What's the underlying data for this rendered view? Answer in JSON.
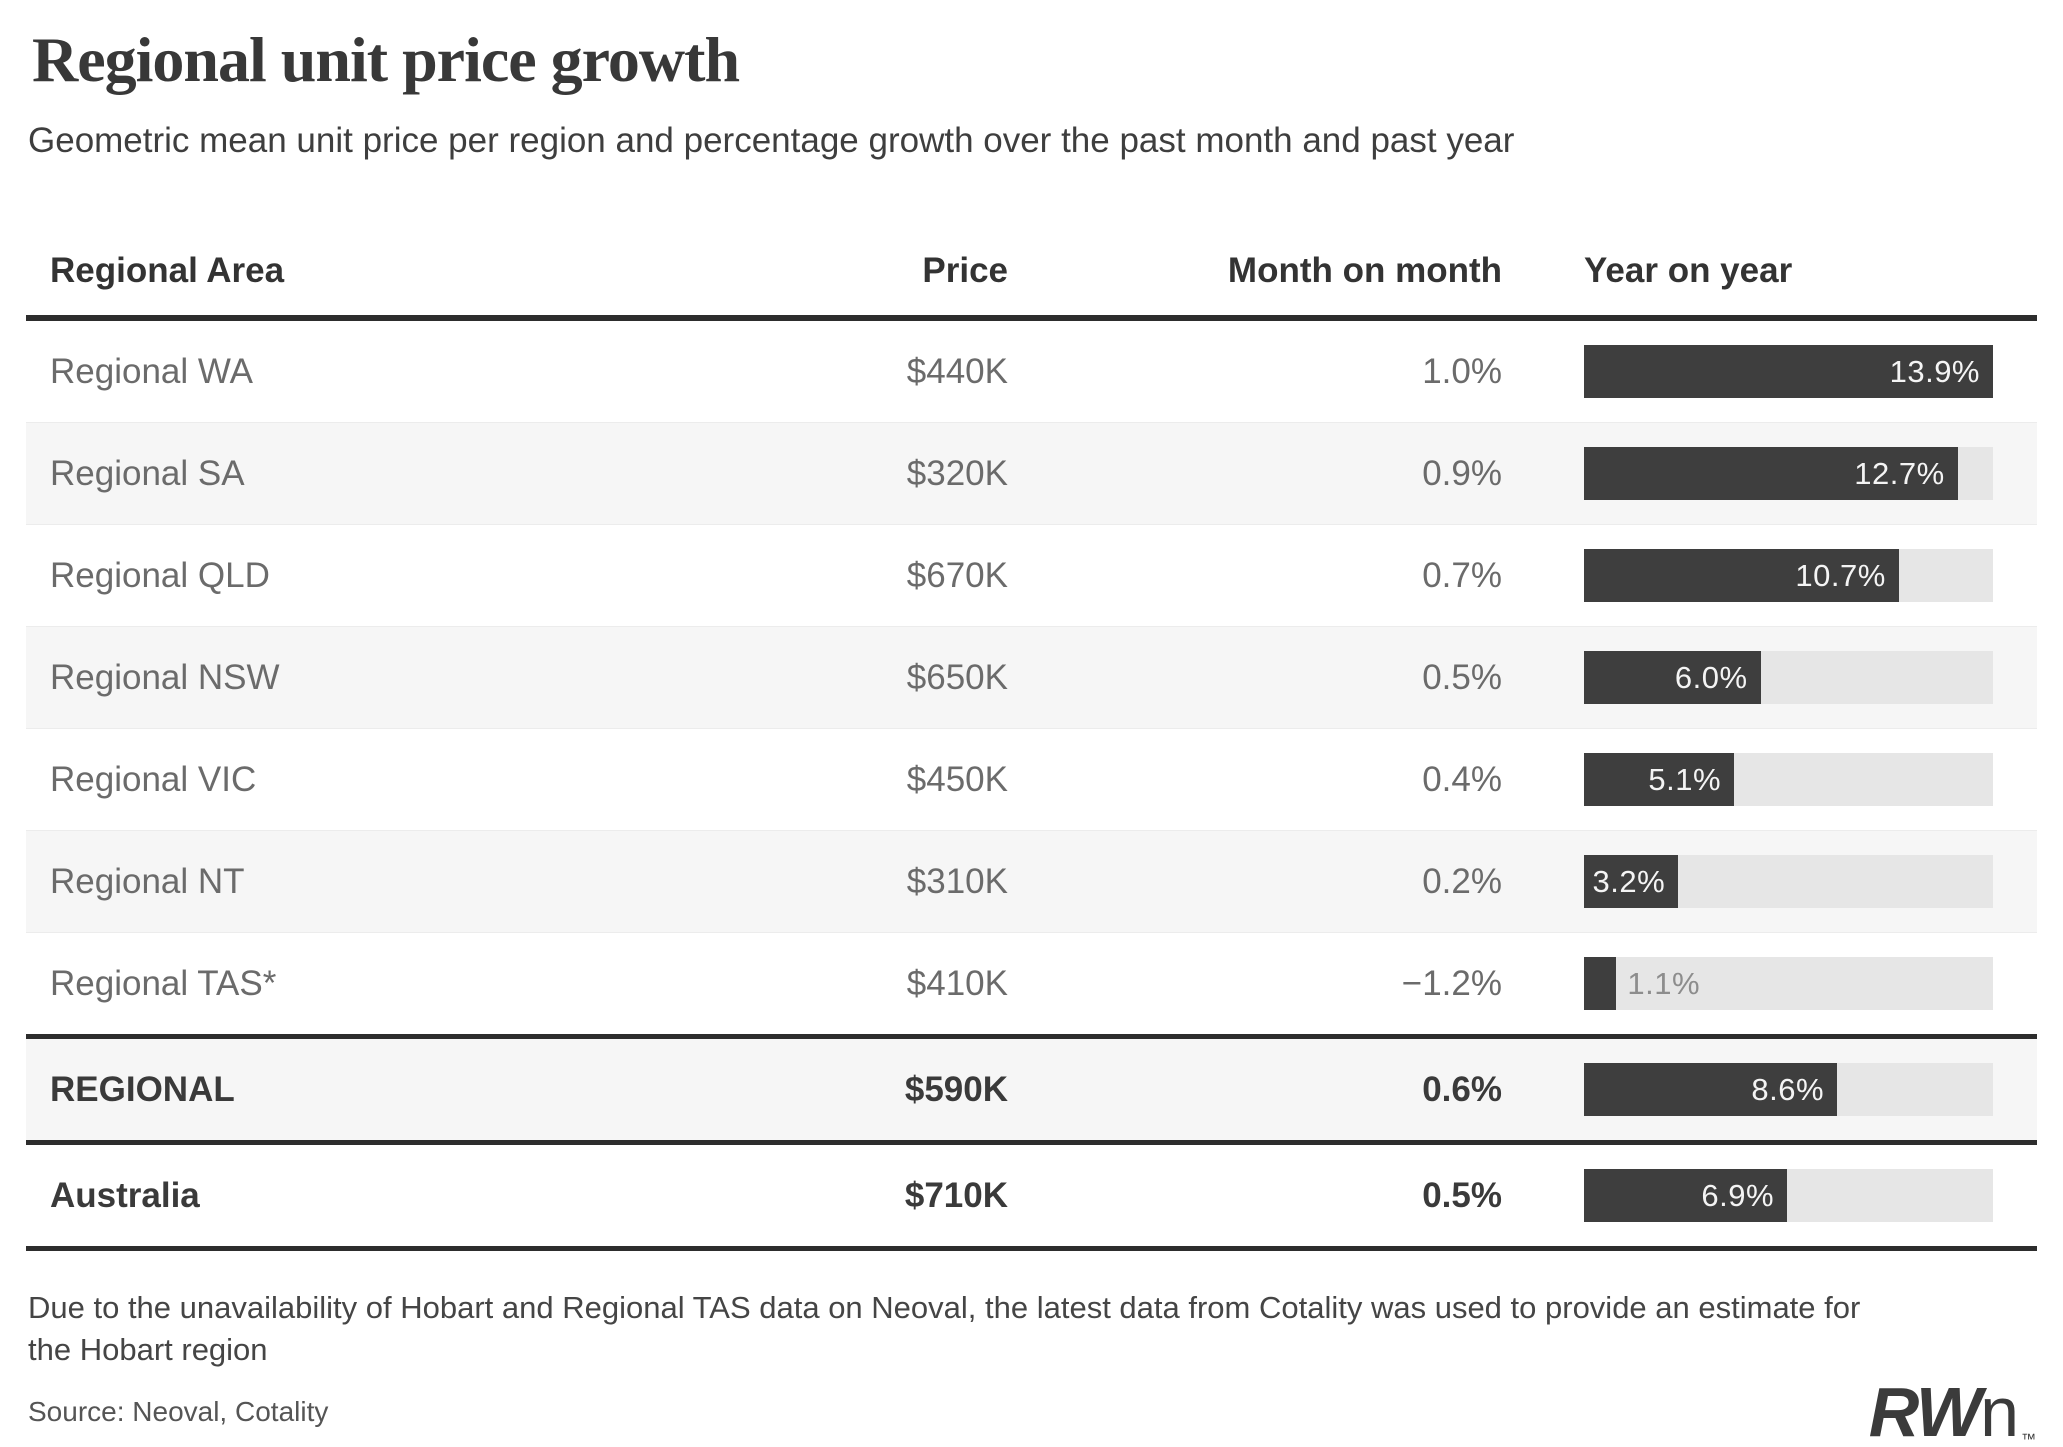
{
  "header": {
    "title": "Regional unit price growth",
    "subtitle": "Geometric mean unit price per region and percentage growth over the past month and past year"
  },
  "table": {
    "columns": [
      "Regional Area",
      "Price",
      "Month on month",
      "Year on year"
    ],
    "yoy_axis_max": 13.9,
    "rows": [
      {
        "area": "Regional WA",
        "price": "$440K",
        "mom": "1.0%",
        "yoy": 13.9,
        "yoy_label": "13.9%",
        "emphasis": false
      },
      {
        "area": "Regional SA",
        "price": "$320K",
        "mom": "0.9%",
        "yoy": 12.7,
        "yoy_label": "12.7%",
        "emphasis": false
      },
      {
        "area": "Regional QLD",
        "price": "$670K",
        "mom": "0.7%",
        "yoy": 10.7,
        "yoy_label": "10.7%",
        "emphasis": false
      },
      {
        "area": "Regional NSW",
        "price": "$650K",
        "mom": "0.5%",
        "yoy": 6.0,
        "yoy_label": "6.0%",
        "emphasis": false
      },
      {
        "area": "Regional VIC",
        "price": "$450K",
        "mom": "0.4%",
        "yoy": 5.1,
        "yoy_label": "5.1%",
        "emphasis": false
      },
      {
        "area": "Regional NT",
        "price": "$310K",
        "mom": "0.2%",
        "yoy": 3.2,
        "yoy_label": "3.2%",
        "emphasis": false
      },
      {
        "area": "Regional TAS*",
        "price": "$410K",
        "mom": "−1.2%",
        "yoy": 1.1,
        "yoy_label": "1.1%",
        "emphasis": false
      },
      {
        "area": "REGIONAL",
        "price": "$590K",
        "mom": "0.6%",
        "yoy": 8.6,
        "yoy_label": "8.6%",
        "emphasis": true
      },
      {
        "area": "Australia",
        "price": "$710K",
        "mom": "0.5%",
        "yoy": 6.9,
        "yoy_label": "6.9%",
        "emphasis": true
      }
    ]
  },
  "footer": {
    "footnote_line1": "Due to the unavailability of Hobart and Regional TAS data on Neoval, the latest data from Cotality was used to provide an estimate for",
    "footnote_line2": "the Hobart region",
    "source": "Source: Neoval, Cotality",
    "logo_bold": "RW",
    "logo_light": "n",
    "logo_tm": "™"
  },
  "colors": {
    "bar_fill": "#3e3e3e",
    "bar_track": "#e6e6e6",
    "row_stripe": "#f6f6f6",
    "rule_dark": "#2d2d2d",
    "text_regular": "#6b6b6b",
    "text_emphasis": "#3a3a3a"
  },
  "chart_data": {
    "type": "bar",
    "orientation": "horizontal",
    "title": "Regional unit price growth",
    "subtitle": "Geometric mean unit price per region and percentage growth over the past month and past year",
    "categories": [
      "Regional WA",
      "Regional SA",
      "Regional QLD",
      "Regional NSW",
      "Regional VIC",
      "Regional NT",
      "Regional TAS*",
      "REGIONAL",
      "Australia"
    ],
    "series": [
      {
        "name": "Price",
        "values": [
          "$440K",
          "$320K",
          "$670K",
          "$650K",
          "$450K",
          "$310K",
          "$410K",
          "$590K",
          "$710K"
        ]
      },
      {
        "name": "Month on month",
        "unit": "%",
        "values": [
          1.0,
          0.9,
          0.7,
          0.5,
          0.4,
          0.2,
          -1.2,
          0.6,
          0.5
        ]
      },
      {
        "name": "Year on year",
        "unit": "%",
        "values": [
          13.9,
          12.7,
          10.7,
          6.0,
          5.1,
          3.2,
          1.1,
          8.6,
          6.9
        ]
      }
    ],
    "bar_series": "Year on year",
    "xlim": [
      0,
      13.9
    ],
    "grid": false,
    "legend": false
  }
}
